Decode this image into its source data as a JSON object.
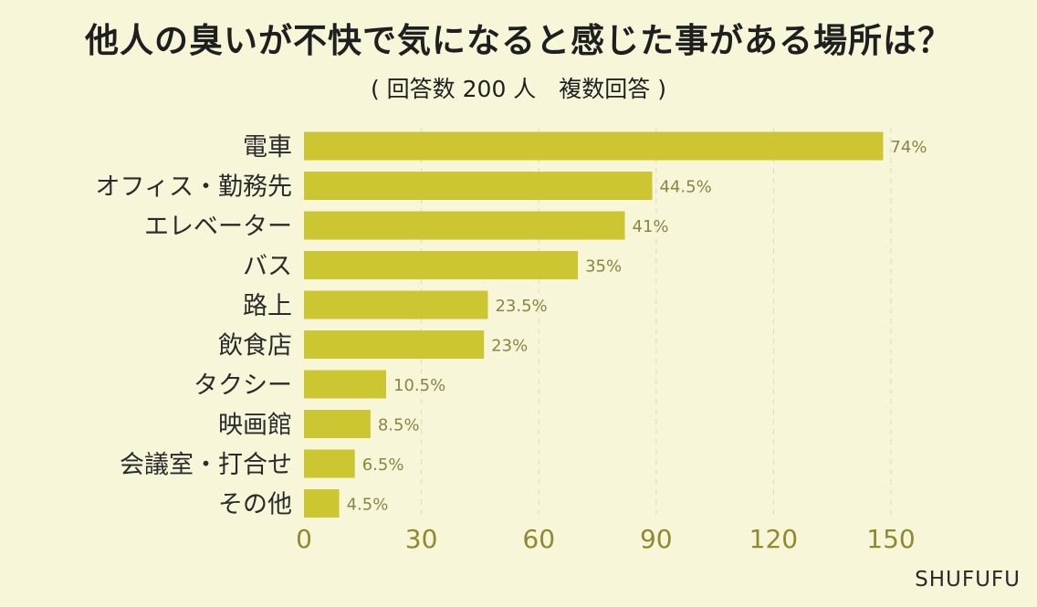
{
  "title": "他人の臭いが不快で気になると感じた事がある場所は？",
  "subtitle": "( 回答数 200 人　複数回答 )",
  "brand": "SHUFUFU",
  "colors": {
    "background": "#f7f6d9",
    "bar": "#cbc632",
    "axis_text": "#8f8930",
    "label_text": "#2b2b2b",
    "value_text": "#8a8540",
    "grid": "#dcdcc4"
  },
  "chart_data": {
    "type": "bar",
    "orientation": "horizontal",
    "categories": [
      "電車",
      "オフィス・勤務先",
      "エレベーター",
      "バス",
      "路上",
      "飲食店",
      "タクシー",
      "映画館",
      "会議室・打合せ",
      "その他"
    ],
    "values": [
      148,
      89,
      82,
      70,
      47,
      46,
      21,
      17,
      13,
      9
    ],
    "value_labels": [
      "74%",
      "44.5%",
      "41%",
      "35%",
      "23.5%",
      "23%",
      "10.5%",
      "8.5%",
      "6.5%",
      "4.5%"
    ],
    "xticks": [
      0,
      30,
      60,
      90,
      120,
      150
    ],
    "xlim": [
      0,
      150
    ],
    "grid": true,
    "legend": "none"
  }
}
